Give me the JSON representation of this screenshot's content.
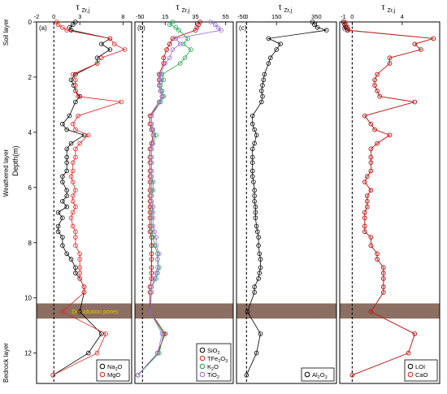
{
  "figure": {
    "y_axis_label": "Depth(m)",
    "y_ticks": [
      0,
      2,
      4,
      6,
      8,
      10,
      12
    ],
    "ylim": [
      0,
      13.1
    ],
    "layers": [
      {
        "label": "Soil layer",
        "from": 0,
        "to": 0.75
      },
      {
        "label": "Weathered layer",
        "from": 0.75,
        "to": 10.2
      },
      {
        "label": "Bedrock layer",
        "from": 11.6,
        "to": 13.1
      }
    ],
    "band": {
      "from": 10.2,
      "to": 10.75,
      "label": "Dissolution pores",
      "color": "#8b6f62",
      "label_color": "#e8c200"
    },
    "colors": {
      "black": "#000000",
      "red": "#e02020",
      "green": "#1aa64a",
      "purple": "#9b6bd0"
    }
  },
  "chart_data": [
    {
      "type": "line",
      "panel_label": "(a)",
      "top_label": "τ",
      "top_label_sub": "Zr,j",
      "xlim": [
        -2,
        9
      ],
      "x_ticks": [
        -2,
        0,
        3,
        8
      ],
      "legend": "bottom-right",
      "series": [
        {
          "name": "Na",
          "name_sub": "2",
          "name_tail": "O",
          "color": "#000000",
          "x": [
            2.5,
            2.2,
            1.8,
            2.0,
            6.5,
            5.5,
            6.5,
            5.0,
            5.0,
            2.5,
            2.0,
            2.3,
            2.5,
            3.0,
            2.5,
            1.8,
            1.0,
            1.5,
            3.5,
            2.0,
            1.5,
            1.5,
            1.5,
            1.5,
            1.0,
            1.0,
            1.5,
            1.5,
            1.0,
            1.5,
            0.5,
            1.0,
            0.5,
            0.5,
            1.0,
            1.0,
            1.5,
            2.0,
            2.5,
            2.5,
            3.0,
            3.5,
            3.5,
            3.0,
            5.5,
            4.0,
            -0.1
          ],
          "y": [
            0.0,
            0.1,
            0.2,
            0.3,
            0.6,
            0.8,
            1.0,
            1.3,
            1.5,
            1.9,
            2.1,
            2.3,
            2.5,
            2.7,
            2.9,
            3.4,
            3.7,
            3.9,
            4.1,
            4.4,
            4.6,
            4.9,
            5.1,
            5.4,
            5.6,
            5.8,
            6.1,
            6.3,
            6.5,
            6.7,
            6.9,
            7.1,
            7.4,
            7.6,
            7.8,
            8.1,
            8.4,
            8.6,
            8.9,
            9.1,
            9.3,
            9.6,
            9.8,
            10.5,
            11.3,
            12.0,
            12.8
          ]
        },
        {
          "name": "MgO",
          "name_sub": "",
          "name_tail": "",
          "color": "#e02020",
          "x": [
            0.3,
            0.5,
            1.0,
            1.5,
            6.5,
            7.0,
            8.2,
            5.5,
            5.0,
            2.2,
            2.5,
            2.5,
            2.5,
            2.8,
            7.8,
            2.8,
            2.2,
            2.5,
            4.0,
            3.0,
            2.5,
            2.5,
            2.2,
            2.2,
            2.0,
            2.2,
            2.5,
            2.2,
            2.2,
            2.5,
            2.2,
            2.0,
            2.2,
            2.5,
            2.5,
            2.5,
            3.0,
            3.0,
            3.0,
            3.0,
            3.0,
            3.5,
            3.5,
            1.0,
            6.0,
            5.0,
            -0.1
          ],
          "y": [
            0.0,
            0.1,
            0.2,
            0.3,
            0.6,
            0.8,
            1.0,
            1.3,
            1.5,
            1.9,
            2.1,
            2.3,
            2.5,
            2.7,
            2.9,
            3.4,
            3.7,
            3.9,
            4.1,
            4.4,
            4.6,
            4.9,
            5.1,
            5.4,
            5.6,
            5.8,
            6.1,
            6.3,
            6.5,
            6.7,
            6.9,
            7.1,
            7.4,
            7.6,
            7.8,
            8.1,
            8.4,
            8.6,
            8.9,
            9.1,
            9.3,
            9.6,
            9.8,
            10.5,
            11.3,
            12.0,
            12.8
          ]
        }
      ]
    },
    {
      "type": "line",
      "panel_label": "(b)",
      "top_label": "τ",
      "top_label_sub": "Zr,j",
      "xlim": [
        -5,
        60
      ],
      "x_ticks": [
        -5,
        0,
        15,
        35,
        55
      ],
      "legend": "bottom-right",
      "series": [
        {
          "name": "SiO",
          "name_sub": "2",
          "name_tail": "",
          "color": "#000000",
          "x": [
            38,
            37,
            36,
            35,
            20,
            18,
            16,
            14,
            14,
            11,
            11,
            11,
            12,
            13,
            11,
            5,
            5,
            6,
            7,
            6,
            5,
            5,
            5,
            5,
            5,
            5,
            5,
            5,
            5,
            5,
            5,
            5,
            5,
            5,
            6,
            6,
            6,
            6,
            6,
            6,
            6,
            5,
            5,
            5,
            15,
            10,
            -3
          ],
          "y": [
            0.0,
            0.1,
            0.2,
            0.3,
            0.6,
            0.8,
            1.0,
            1.3,
            1.5,
            1.9,
            2.1,
            2.3,
            2.5,
            2.7,
            2.9,
            3.4,
            3.7,
            3.9,
            4.1,
            4.4,
            4.6,
            4.9,
            5.1,
            5.4,
            5.6,
            5.8,
            6.1,
            6.3,
            6.5,
            6.7,
            6.9,
            7.1,
            7.4,
            7.6,
            7.8,
            8.1,
            8.4,
            8.6,
            8.9,
            9.1,
            9.3,
            9.6,
            9.8,
            10.5,
            11.3,
            12.0,
            12.8
          ]
        },
        {
          "name": "TFe",
          "name_sub": "2",
          "name_tail": "O",
          "name_sub2": "3",
          "color": "#e02020",
          "x": [
            38,
            37,
            36,
            35,
            20,
            18,
            16,
            14,
            14,
            11,
            11,
            11,
            12,
            13,
            11,
            5,
            5,
            6,
            7,
            6,
            5,
            5,
            5,
            5,
            5,
            5,
            5,
            5,
            5,
            5,
            5,
            5,
            5,
            5,
            6,
            6,
            6,
            6,
            6,
            6,
            6,
            5,
            5,
            5,
            15,
            10,
            -3
          ],
          "y": [
            0.0,
            0.1,
            0.2,
            0.3,
            0.6,
            0.8,
            1.0,
            1.3,
            1.5,
            1.9,
            2.1,
            2.3,
            2.5,
            2.7,
            2.9,
            3.4,
            3.7,
            3.9,
            4.1,
            4.4,
            4.6,
            4.9,
            5.1,
            5.4,
            5.6,
            5.8,
            6.1,
            6.3,
            6.5,
            6.7,
            6.9,
            7.1,
            7.4,
            7.6,
            7.8,
            8.1,
            8.4,
            8.6,
            8.9,
            9.1,
            9.3,
            9.6,
            9.8,
            10.5,
            11.3,
            12.0,
            12.8
          ]
        },
        {
          "name": "K",
          "name_sub": "2",
          "name_tail": "O",
          "color": "#1aa64a",
          "x": [
            20,
            18,
            22,
            24,
            30,
            27,
            32,
            28,
            25,
            13,
            14,
            12,
            13,
            14,
            12,
            6,
            6,
            7,
            9,
            7,
            6,
            6,
            6,
            6,
            6,
            7,
            7,
            6,
            6,
            7,
            6,
            6,
            6,
            6,
            7,
            8,
            10,
            10,
            11,
            10,
            9,
            6,
            6,
            5,
            14,
            11,
            -3
          ],
          "y": [
            0.0,
            0.1,
            0.2,
            0.3,
            0.6,
            0.8,
            1.0,
            1.3,
            1.5,
            1.9,
            2.1,
            2.3,
            2.5,
            2.7,
            2.9,
            3.4,
            3.7,
            3.9,
            4.1,
            4.4,
            4.6,
            4.9,
            5.1,
            5.4,
            5.6,
            5.8,
            6.1,
            6.3,
            6.5,
            6.7,
            6.9,
            7.1,
            7.4,
            7.6,
            7.8,
            8.1,
            8.4,
            8.6,
            8.9,
            9.1,
            9.3,
            9.6,
            9.8,
            10.5,
            11.3,
            12.0,
            12.8
          ]
        },
        {
          "name": "TiO",
          "name_sub": "2",
          "name_tail": "",
          "color": "#9b6bd0",
          "x": [
            45,
            48,
            50,
            52,
            22,
            25,
            20,
            18,
            15,
            12,
            12,
            11,
            12,
            13,
            11,
            6,
            6,
            7,
            7,
            7,
            6,
            6,
            6,
            6,
            6,
            6,
            6,
            6,
            6,
            7,
            7,
            7,
            7,
            8,
            9,
            9,
            11,
            10,
            10,
            9,
            8,
            6,
            6,
            5,
            13,
            10,
            -3
          ],
          "y": [
            0.0,
            0.1,
            0.2,
            0.3,
            0.6,
            0.8,
            1.0,
            1.3,
            1.5,
            1.9,
            2.1,
            2.3,
            2.5,
            2.7,
            2.9,
            3.4,
            3.7,
            3.9,
            4.1,
            4.4,
            4.6,
            4.9,
            5.1,
            5.4,
            5.6,
            5.8,
            6.1,
            6.3,
            6.5,
            6.7,
            6.9,
            7.1,
            7.4,
            7.6,
            7.8,
            8.1,
            8.4,
            8.6,
            8.9,
            9.1,
            9.3,
            9.6,
            9.8,
            10.5,
            11.3,
            12.0,
            12.8
          ]
        }
      ]
    },
    {
      "type": "line",
      "panel_label": "(c)",
      "top_label": "τ",
      "top_label_sub": "Zr,j",
      "xlim": [
        -50,
        450
      ],
      "x_ticks": [
        -50,
        0,
        150,
        350
      ],
      "legend": "bottom-right",
      "series": [
        {
          "name": "Al",
          "name_sub": "2",
          "name_tail": "O",
          "name_sub2": "3",
          "color": "#000000",
          "x": [
            330,
            340,
            355,
            400,
            110,
            170,
            150,
            120,
            110,
            90,
            85,
            80,
            75,
            80,
            75,
            30,
            30,
            40,
            50,
            40,
            30,
            30,
            30,
            30,
            30,
            35,
            40,
            40,
            40,
            45,
            45,
            45,
            50,
            55,
            60,
            60,
            65,
            70,
            70,
            65,
            60,
            40,
            40,
            5,
            70,
            50,
            0
          ],
          "y": [
            0.0,
            0.1,
            0.2,
            0.3,
            0.6,
            0.8,
            1.0,
            1.3,
            1.5,
            1.9,
            2.1,
            2.3,
            2.5,
            2.7,
            2.9,
            3.4,
            3.7,
            3.9,
            4.1,
            4.4,
            4.6,
            4.9,
            5.1,
            5.4,
            5.6,
            5.8,
            6.1,
            6.3,
            6.5,
            6.7,
            6.9,
            7.1,
            7.4,
            7.6,
            7.8,
            8.1,
            8.4,
            8.6,
            8.9,
            9.1,
            9.3,
            9.6,
            9.8,
            10.5,
            11.3,
            12.0,
            12.8
          ]
        }
      ]
    },
    {
      "type": "line",
      "panel_label": "(d)",
      "top_label": "τ",
      "top_label_sub": "Zr,j",
      "xlim": [
        -1,
        7
      ],
      "x_ticks": [
        -1,
        0,
        4
      ],
      "legend": "bottom-right",
      "series": [
        {
          "name": "LOI",
          "name_sub": "",
          "name_tail": "",
          "color": "#000000",
          "x": [
            -0.7,
            -0.6,
            -0.5,
            -0.4,
            6.5,
            5.0,
            5.5,
            3.0,
            3.0,
            2.0,
            1.8,
            1.8,
            2.0,
            2.2,
            5.0,
            1.0,
            1.5,
            1.8,
            3.0,
            2.0,
            1.5,
            1.5,
            1.5,
            1.5,
            1.2,
            1.0,
            1.5,
            1.2,
            1.2,
            1.2,
            1.0,
            1.0,
            1.0,
            1.0,
            1.5,
            1.5,
            2.0,
            2.0,
            2.5,
            2.5,
            2.5,
            2.5,
            2.5,
            1.5,
            5.0,
            4.5,
            0.0
          ],
          "y": [
            0.0,
            0.1,
            0.2,
            0.3,
            0.6,
            0.8,
            1.0,
            1.3,
            1.5,
            1.9,
            2.1,
            2.3,
            2.5,
            2.7,
            2.9,
            3.4,
            3.7,
            3.9,
            4.1,
            4.4,
            4.6,
            4.9,
            5.1,
            5.4,
            5.6,
            5.8,
            6.1,
            6.3,
            6.5,
            6.7,
            6.9,
            7.1,
            7.4,
            7.6,
            7.8,
            8.1,
            8.4,
            8.6,
            8.9,
            9.1,
            9.3,
            9.6,
            9.8,
            10.5,
            11.3,
            12.0,
            12.8
          ]
        },
        {
          "name": "CaO",
          "name_sub": "",
          "name_tail": "",
          "color": "#e02020",
          "x": [
            -0.6,
            -0.5,
            -0.4,
            -0.3,
            6.5,
            5.0,
            5.5,
            3.0,
            3.0,
            2.0,
            1.8,
            1.8,
            2.0,
            2.2,
            5.0,
            1.0,
            1.5,
            1.8,
            3.0,
            2.0,
            1.5,
            1.5,
            1.5,
            1.5,
            1.2,
            1.0,
            1.5,
            1.2,
            1.2,
            1.2,
            1.0,
            1.0,
            1.0,
            1.0,
            1.5,
            1.5,
            2.0,
            2.0,
            2.5,
            2.5,
            2.5,
            2.5,
            2.5,
            1.5,
            5.0,
            4.5,
            0.0
          ],
          "y": [
            0.0,
            0.1,
            0.2,
            0.3,
            0.6,
            0.8,
            1.0,
            1.3,
            1.5,
            1.9,
            2.1,
            2.3,
            2.5,
            2.7,
            2.9,
            3.4,
            3.7,
            3.9,
            4.1,
            4.4,
            4.6,
            4.9,
            5.1,
            5.4,
            5.6,
            5.8,
            6.1,
            6.3,
            6.5,
            6.7,
            6.9,
            7.1,
            7.4,
            7.6,
            7.8,
            8.1,
            8.4,
            8.6,
            8.9,
            9.1,
            9.3,
            9.6,
            9.8,
            10.5,
            11.3,
            12.0,
            12.8
          ]
        }
      ]
    }
  ]
}
